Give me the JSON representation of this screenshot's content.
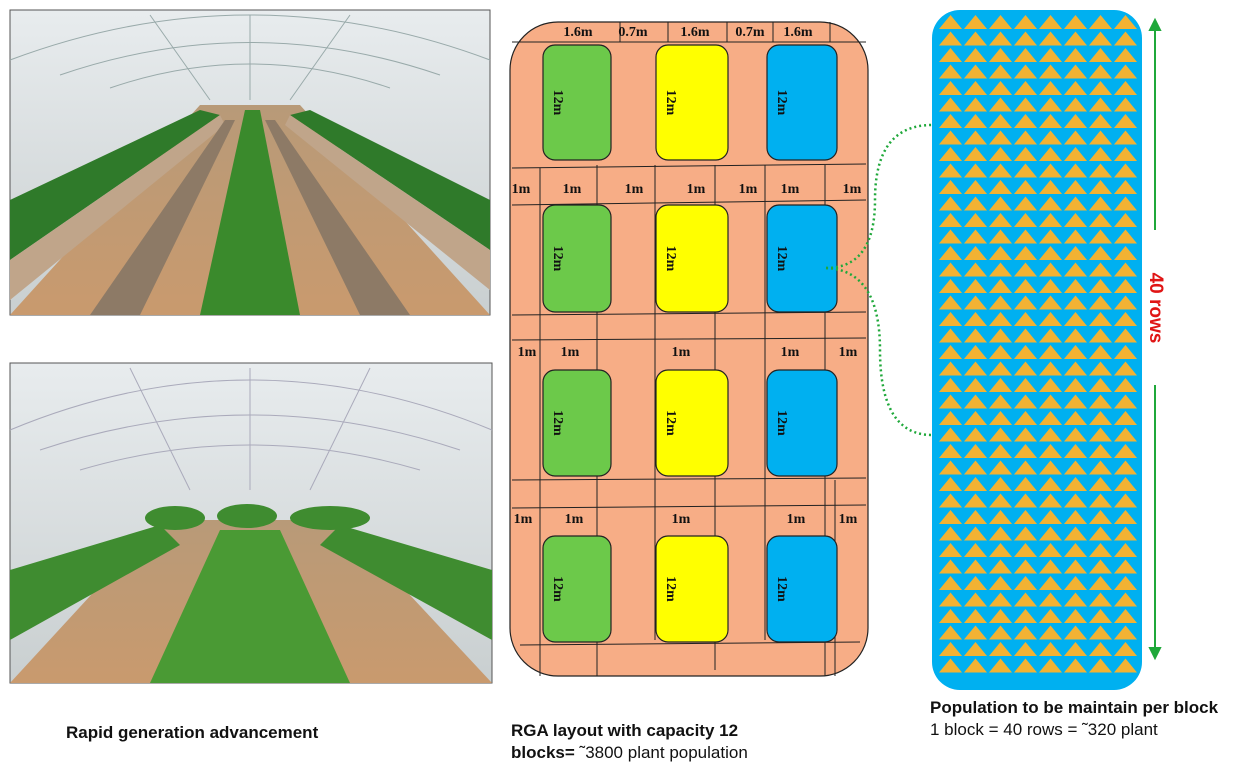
{
  "photo_caption": "Rapid generation advancement",
  "layout": {
    "widths": [
      "1.6m",
      "0.7m",
      "1.6m",
      "0.7m",
      "1.6m"
    ],
    "blocks": [
      "12m",
      "12m",
      "12m",
      "12m",
      "12m",
      "12m",
      "12m",
      "12m",
      "12m",
      "12m",
      "12m",
      "12m"
    ],
    "spacing_rows": [
      [
        "1m",
        "1m",
        "1m",
        "1m",
        "1m",
        "1m",
        "1m"
      ],
      [
        "1m",
        "1m",
        "1m",
        "1m",
        "1m"
      ],
      [
        "1m",
        "1m",
        "1m",
        "1m",
        "1m"
      ]
    ]
  },
  "population": {
    "label": "40 rows"
  },
  "captions": {
    "layout": {
      "line1": "RGA layout with capacity 12",
      "bold": "blocks=",
      "normal": "˜3800 plant population"
    },
    "population": {
      "bold": "Population to be maintain per block",
      "normal": "1 block = 40 rows = ˜320 plant"
    }
  }
}
